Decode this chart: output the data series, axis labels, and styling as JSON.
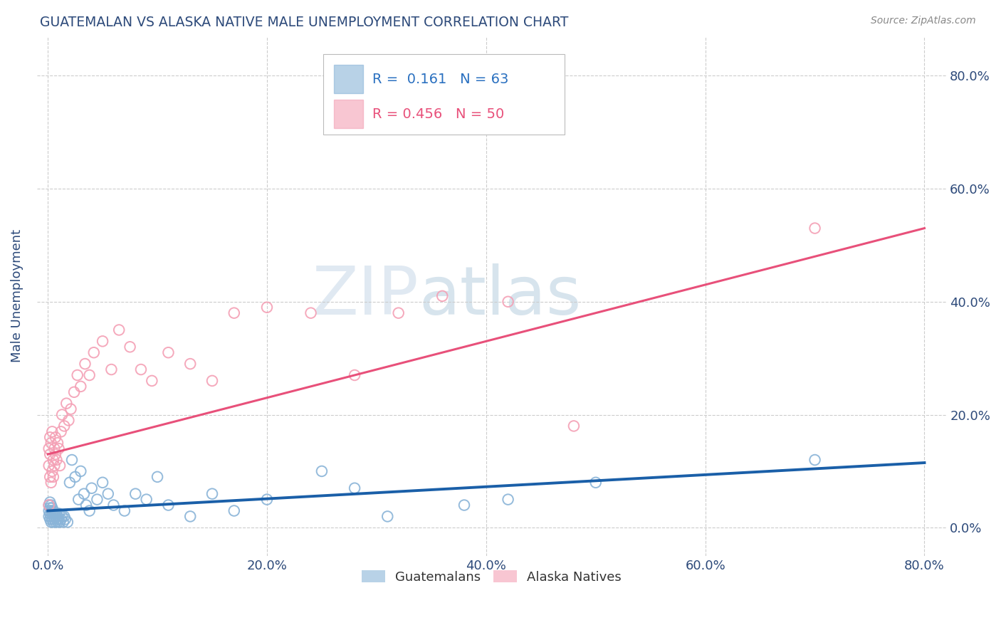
{
  "title": "GUATEMALAN VS ALASKA NATIVE MALE UNEMPLOYMENT CORRELATION CHART",
  "source": "Source: ZipAtlas.com",
  "ylabel": "Male Unemployment",
  "xlabel": "",
  "xlim": [
    -0.01,
    0.82
  ],
  "ylim": [
    -0.05,
    0.87
  ],
  "xticks": [
    0.0,
    0.2,
    0.4,
    0.6,
    0.8
  ],
  "yticks": [
    0.0,
    0.2,
    0.4,
    0.6,
    0.8
  ],
  "xticklabels": [
    "0.0%",
    "20.0%",
    "40.0%",
    "60.0%",
    "80.0%"
  ],
  "yticklabels": [
    "0.0%",
    "20.0%",
    "40.0%",
    "60.0%",
    "80.0%"
  ],
  "guatemalans_x": [
    0.001,
    0.001,
    0.001,
    0.002,
    0.002,
    0.002,
    0.002,
    0.003,
    0.003,
    0.003,
    0.003,
    0.004,
    0.004,
    0.004,
    0.005,
    0.005,
    0.005,
    0.006,
    0.006,
    0.007,
    0.007,
    0.008,
    0.008,
    0.009,
    0.009,
    0.01,
    0.01,
    0.011,
    0.012,
    0.013,
    0.014,
    0.015,
    0.016,
    0.018,
    0.02,
    0.022,
    0.025,
    0.028,
    0.03,
    0.033,
    0.035,
    0.038,
    0.04,
    0.045,
    0.05,
    0.055,
    0.06,
    0.07,
    0.08,
    0.09,
    0.1,
    0.11,
    0.13,
    0.15,
    0.17,
    0.2,
    0.25,
    0.28,
    0.31,
    0.38,
    0.42,
    0.5,
    0.7
  ],
  "guatemalans_y": [
    0.02,
    0.03,
    0.04,
    0.015,
    0.025,
    0.035,
    0.045,
    0.01,
    0.02,
    0.03,
    0.04,
    0.015,
    0.025,
    0.035,
    0.01,
    0.02,
    0.03,
    0.015,
    0.025,
    0.01,
    0.02,
    0.015,
    0.025,
    0.01,
    0.02,
    0.015,
    0.025,
    0.01,
    0.015,
    0.02,
    0.01,
    0.02,
    0.015,
    0.01,
    0.08,
    0.12,
    0.09,
    0.05,
    0.1,
    0.06,
    0.04,
    0.03,
    0.07,
    0.05,
    0.08,
    0.06,
    0.04,
    0.03,
    0.06,
    0.05,
    0.09,
    0.04,
    0.02,
    0.06,
    0.03,
    0.05,
    0.1,
    0.07,
    0.02,
    0.04,
    0.05,
    0.08,
    0.12
  ],
  "alaska_natives_x": [
    0.001,
    0.001,
    0.001,
    0.002,
    0.002,
    0.002,
    0.003,
    0.003,
    0.004,
    0.004,
    0.005,
    0.005,
    0.006,
    0.006,
    0.007,
    0.007,
    0.008,
    0.009,
    0.01,
    0.011,
    0.012,
    0.013,
    0.015,
    0.017,
    0.019,
    0.021,
    0.024,
    0.027,
    0.03,
    0.034,
    0.038,
    0.042,
    0.05,
    0.058,
    0.065,
    0.075,
    0.085,
    0.095,
    0.11,
    0.13,
    0.15,
    0.17,
    0.2,
    0.24,
    0.28,
    0.32,
    0.36,
    0.42,
    0.48,
    0.7
  ],
  "alaska_natives_y": [
    0.04,
    0.11,
    0.14,
    0.09,
    0.13,
    0.16,
    0.08,
    0.15,
    0.1,
    0.17,
    0.12,
    0.09,
    0.14,
    0.11,
    0.16,
    0.13,
    0.12,
    0.15,
    0.14,
    0.11,
    0.17,
    0.2,
    0.18,
    0.22,
    0.19,
    0.21,
    0.24,
    0.27,
    0.25,
    0.29,
    0.27,
    0.31,
    0.33,
    0.28,
    0.35,
    0.32,
    0.28,
    0.26,
    0.31,
    0.29,
    0.26,
    0.38,
    0.39,
    0.38,
    0.27,
    0.38,
    0.41,
    0.4,
    0.18,
    0.53
  ],
  "guatemalans_color": "#8ab4d8",
  "alaska_natives_color": "#f4a0b5",
  "blue_trend_x0": 0.0,
  "blue_trend_x1": 0.8,
  "blue_trend_y0": 0.03,
  "blue_trend_y1": 0.115,
  "pink_trend_x0": 0.0,
  "pink_trend_x1": 0.8,
  "pink_trend_y0": 0.13,
  "pink_trend_y1": 0.53,
  "blue_trend_color": "#1a5fa8",
  "pink_trend_color": "#e8507a",
  "title_color": "#2d4a7a",
  "source_color": "#888888",
  "axis_label_color": "#2d4a7a",
  "tick_color": "#2d4a7a",
  "grid_color": "#cccccc",
  "background_color": "#ffffff",
  "legend_R1": "R =  0.161",
  "legend_N1": "N = 63",
  "legend_R2": "R = 0.456",
  "legend_N2": "N = 50",
  "legend_color1": "#2a70c0",
  "legend_color2": "#e8507a",
  "watermark_text": "ZIPatlas",
  "watermark_color": "#ccdded",
  "bottom_legend1": "Guatemalans",
  "bottom_legend2": "Alaska Natives"
}
